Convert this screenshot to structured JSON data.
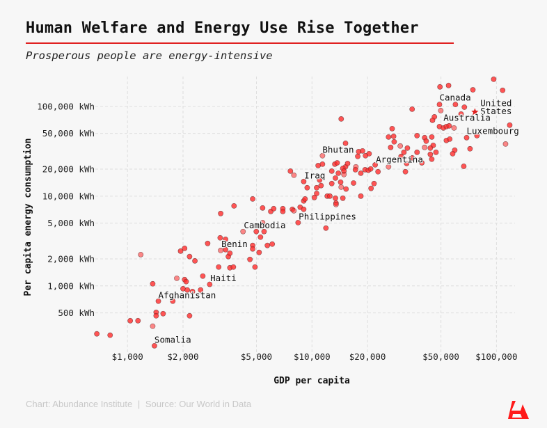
{
  "title": "Human Welfare and Energy Use Rise Together",
  "subtitle": "Prosperous people are energy-intensive",
  "footer": {
    "chart_credit": "Chart: Abundance Institute",
    "separator": "|",
    "source": "Source: Our World in Data"
  },
  "colors": {
    "accent": "#e02020",
    "dot": "#ff2a2a"
  },
  "chart_data": {
    "type": "scatter",
    "title": "Human Welfare and Energy Use Rise Together",
    "xlabel": "GDP per capita",
    "ylabel": "Per capita energy consumption",
    "xscale": "log",
    "yscale": "log",
    "xlim": [
      630,
      126000
    ],
    "ylim": [
      170,
      215000
    ],
    "grid": true,
    "xticks": [
      {
        "value": 1000,
        "label": "$1,000"
      },
      {
        "value": 2000,
        "label": "$2,000"
      },
      {
        "value": 5000,
        "label": "$5,000"
      },
      {
        "value": 10000,
        "label": "$10,000"
      },
      {
        "value": 20000,
        "label": "$20,000"
      },
      {
        "value": 50000,
        "label": "$50,000"
      },
      {
        "value": 100000,
        "label": "$100,000"
      }
    ],
    "yticks": [
      {
        "value": 500,
        "label": "500 kWh"
      },
      {
        "value": 1000,
        "label": "1,000 kWh"
      },
      {
        "value": 2000,
        "label": "2,000 kWh"
      },
      {
        "value": 5000,
        "label": "5,000 kWh"
      },
      {
        "value": 10000,
        "label": "10,000 kWh"
      },
      {
        "value": 20000,
        "label": "20,000 kWh"
      },
      {
        "value": 50000,
        "label": "50,000 kWh"
      },
      {
        "value": 100000,
        "label": "100,000 kWh"
      }
    ],
    "points": [
      [
        682,
        292
      ],
      [
        805,
        282
      ],
      [
        1035,
        409
      ],
      [
        1140,
        409
      ],
      [
        1370,
        355
      ],
      [
        1400,
        215
      ],
      [
        1430,
        507
      ],
      [
        1430,
        464
      ],
      [
        1560,
        490
      ],
      [
        1470,
        675
      ],
      [
        1760,
        675
      ],
      [
        2170,
        464
      ],
      [
        1370,
        1055
      ],
      [
        1850,
        1215
      ],
      [
        2040,
        1175
      ],
      [
        2080,
        1115
      ],
      [
        2000,
        930
      ],
      [
        2110,
        900
      ],
      [
        2250,
        865
      ],
      [
        2490,
        900
      ],
      [
        2560,
        1285
      ],
      [
        2790,
        1040
      ],
      [
        1180,
        2230
      ],
      [
        1940,
        2440
      ],
      [
        2040,
        2620
      ],
      [
        2170,
        2120
      ],
      [
        2320,
        1900
      ],
      [
        2720,
        2970
      ],
      [
        3120,
        1620
      ],
      [
        3180,
        3430
      ],
      [
        3400,
        3300
      ],
      [
        3200,
        2480
      ],
      [
        3400,
        2530
      ],
      [
        3520,
        2120
      ],
      [
        3590,
        2310
      ],
      [
        3590,
        1590
      ],
      [
        3750,
        1620
      ],
      [
        3200,
        6400
      ],
      [
        3780,
        7780
      ],
      [
        4770,
        9300
      ],
      [
        4230,
        4030
      ],
      [
        4770,
        2820
      ],
      [
        4770,
        2580
      ],
      [
        4610,
        1970
      ],
      [
        4910,
        1620
      ],
      [
        5170,
        2360
      ],
      [
        4990,
        4030
      ],
      [
        5260,
        3490
      ],
      [
        5500,
        4030
      ],
      [
        5400,
        5070
      ],
      [
        5730,
        2820
      ],
      [
        6090,
        2920
      ],
      [
        5400,
        7380
      ],
      [
        5980,
        6750
      ],
      [
        6200,
        7250
      ],
      [
        6950,
        7250
      ],
      [
        6950,
        6750
      ],
      [
        7830,
        7130
      ],
      [
        7980,
        6870
      ],
      [
        8630,
        7520
      ],
      [
        9020,
        7130
      ],
      [
        8410,
        5070
      ],
      [
        9020,
        8830
      ],
      [
        9170,
        9300
      ],
      [
        9020,
        14550
      ],
      [
        9420,
        12400
      ],
      [
        7640,
        19000
      ],
      [
        7980,
        17100
      ],
      [
        96600,
        200500
      ],
      [
        49400,
        165000
      ],
      [
        55000,
        171000
      ],
      [
        74500,
        153000
      ],
      [
        108000,
        151000
      ],
      [
        49100,
        105000
      ],
      [
        59900,
        105000
      ],
      [
        67000,
        98000
      ],
      [
        49900,
        89800
      ],
      [
        64300,
        82200
      ],
      [
        34900,
        93100
      ],
      [
        46100,
        76500
      ],
      [
        45000,
        70000
      ],
      [
        49100,
        59600
      ],
      [
        51600,
        57500
      ],
      [
        53500,
        59600
      ],
      [
        55400,
        60700
      ],
      [
        58900,
        57500
      ],
      [
        118000,
        61800
      ],
      [
        14400,
        72500
      ],
      [
        27200,
        56500
      ],
      [
        37100,
        47200
      ],
      [
        40800,
        44800
      ],
      [
        44600,
        45600
      ],
      [
        41600,
        41000
      ],
      [
        45400,
        36800
      ],
      [
        40800,
        34900
      ],
      [
        43800,
        34300
      ],
      [
        47000,
        30800
      ],
      [
        43800,
        29200
      ],
      [
        44600,
        25800
      ],
      [
        53500,
        41700
      ],
      [
        55800,
        43200
      ],
      [
        68900,
        44800
      ],
      [
        78400,
        47200
      ],
      [
        112000,
        38100
      ],
      [
        71900,
        33700
      ],
      [
        59400,
        32500
      ],
      [
        57900,
        29700
      ],
      [
        66500,
        21500
      ],
      [
        26000,
        45600
      ],
      [
        27700,
        46400
      ],
      [
        27900,
        40300
      ],
      [
        26700,
        34900
      ],
      [
        30100,
        36200
      ],
      [
        32900,
        34300
      ],
      [
        37100,
        30800
      ],
      [
        31500,
        30800
      ],
      [
        30400,
        27700
      ],
      [
        34900,
        26700
      ],
      [
        32600,
        23100
      ],
      [
        39400,
        23500
      ],
      [
        32100,
        18700
      ],
      [
        26000,
        21200
      ],
      [
        22800,
        18700
      ],
      [
        22000,
        22300
      ],
      [
        15200,
        38800
      ],
      [
        17900,
        31300
      ],
      [
        18800,
        31900
      ],
      [
        20400,
        29700
      ],
      [
        19500,
        28200
      ],
      [
        17700,
        27700
      ],
      [
        11400,
        28200
      ],
      [
        10800,
        21900
      ],
      [
        11400,
        22700
      ],
      [
        13300,
        22700
      ],
      [
        13700,
        23500
      ],
      [
        15200,
        21200
      ],
      [
        15600,
        23100
      ],
      [
        14700,
        20400
      ],
      [
        14900,
        19000
      ],
      [
        14900,
        17400
      ],
      [
        13900,
        18000
      ],
      [
        12800,
        19000
      ],
      [
        13400,
        15900
      ],
      [
        14300,
        14300
      ],
      [
        12800,
        13800
      ],
      [
        11200,
        13100
      ],
      [
        11000,
        15100
      ],
      [
        10600,
        12400
      ],
      [
        17300,
        21200
      ],
      [
        17200,
        19700
      ],
      [
        18400,
        18000
      ],
      [
        19400,
        19700
      ],
      [
        20200,
        19400
      ],
      [
        20800,
        20100
      ],
      [
        16800,
        14000
      ],
      [
        21700,
        13800
      ],
      [
        20900,
        12200
      ],
      [
        14400,
        12600
      ],
      [
        15300,
        12000
      ],
      [
        10600,
        10700
      ],
      [
        10300,
        9650
      ],
      [
        12100,
        10000
      ],
      [
        12500,
        10000
      ],
      [
        13400,
        9480
      ],
      [
        14700,
        9480
      ],
      [
        13500,
        8360
      ],
      [
        13500,
        8070
      ],
      [
        18400,
        10000
      ],
      [
        11900,
        4400
      ]
    ],
    "highlight": {
      "name": "United States",
      "marker": "star",
      "x": 76400,
      "y": 86700
    },
    "annotations": [
      {
        "text": "Canada",
        "x": 49100,
        "y": 124000
      },
      {
        "text": "United",
        "x": 81800,
        "y": 107000
      },
      {
        "text": "States",
        "x": 81800,
        "y": 87000
      },
      {
        "text": "Australia",
        "x": 51600,
        "y": 73700
      },
      {
        "text": "Luxembourg",
        "x": 68900,
        "y": 52600
      },
      {
        "text": "Bhutan",
        "x": 11400,
        "y": 32500
      },
      {
        "text": "Argentina",
        "x": 22200,
        "y": 25300
      },
      {
        "text": "Iraq",
        "x": 9080,
        "y": 16800
      },
      {
        "text": "Philippines",
        "x": 8470,
        "y": 5850
      },
      {
        "text": "Cambodia",
        "x": 4270,
        "y": 4650
      },
      {
        "text": "Benin",
        "x": 3230,
        "y": 2870
      },
      {
        "text": "Haiti",
        "x": 2810,
        "y": 1200
      },
      {
        "text": "Afghanistan",
        "x": 1470,
        "y": 778
      },
      {
        "text": "Somalia",
        "x": 1400,
        "y": 248
      }
    ]
  }
}
